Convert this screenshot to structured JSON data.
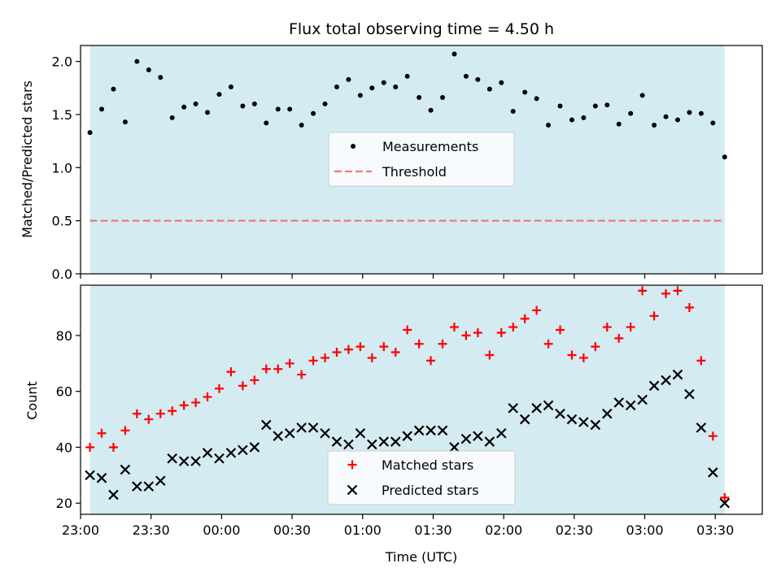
{
  "chart_data": [
    {
      "type": "scatter",
      "title": "Flux total observing time = 4.50 h",
      "xlabel": "",
      "ylabel": "Matched/Predicted stars",
      "ylim": [
        0.0,
        2.15
      ],
      "yticks": [
        "0.0",
        "0.5",
        "1.0",
        "1.5",
        "2.0"
      ],
      "shaded_region": {
        "start": "23:04",
        "end": "03:34",
        "color": "#add8e6"
      },
      "legend": {
        "position": "center",
        "entries": [
          "Measurements",
          "Threshold"
        ]
      },
      "series": [
        {
          "name": "Measurements",
          "marker": "dot",
          "color": "#000000",
          "x": [
            "23:04",
            "23:09",
            "23:14",
            "23:19",
            "23:24",
            "23:29",
            "23:34",
            "23:39",
            "23:44",
            "23:49",
            "23:54",
            "23:59",
            "00:04",
            "00:09",
            "00:14",
            "00:19",
            "00:24",
            "00:29",
            "00:34",
            "00:39",
            "00:44",
            "00:49",
            "00:54",
            "00:59",
            "01:04",
            "01:09",
            "01:14",
            "01:19",
            "01:24",
            "01:29",
            "01:34",
            "01:39",
            "01:44",
            "01:49",
            "01:54",
            "01:59",
            "02:04",
            "02:09",
            "02:14",
            "02:19",
            "02:24",
            "02:29",
            "02:34",
            "02:39",
            "02:44",
            "02:49",
            "02:54",
            "02:59",
            "03:04",
            "03:09",
            "03:14",
            "03:19",
            "03:24",
            "03:29",
            "03:34"
          ],
          "y": [
            1.33,
            1.55,
            1.74,
            1.43,
            2.0,
            1.92,
            1.85,
            1.47,
            1.57,
            1.6,
            1.52,
            1.69,
            1.76,
            1.58,
            1.6,
            1.42,
            1.55,
            1.55,
            1.4,
            1.51,
            1.6,
            1.76,
            1.83,
            1.68,
            1.75,
            1.8,
            1.76,
            1.86,
            1.66,
            1.54,
            1.66,
            2.07,
            1.86,
            1.83,
            1.74,
            1.8,
            1.53,
            1.71,
            1.65,
            1.4,
            1.58,
            1.45,
            1.47,
            1.58,
            1.59,
            1.41,
            1.51,
            1.68,
            1.4,
            1.48,
            1.45,
            1.52,
            1.51,
            1.42,
            1.1
          ]
        },
        {
          "name": "Threshold",
          "marker": "dashed-line",
          "color": "#f07878",
          "x": [
            "23:04",
            "03:34"
          ],
          "y": [
            0.5,
            0.5
          ]
        }
      ]
    },
    {
      "type": "scatter",
      "title": "",
      "xlabel": "Time (UTC)",
      "ylabel": "Count",
      "ylim": [
        16,
        98
      ],
      "yticks": [
        "20",
        "40",
        "60",
        "80"
      ],
      "xticks": [
        "23:00",
        "23:30",
        "00:00",
        "00:30",
        "01:00",
        "01:30",
        "02:00",
        "02:30",
        "03:00",
        "03:30"
      ],
      "shaded_region": {
        "start": "23:04",
        "end": "03:34",
        "color": "#add8e6"
      },
      "legend": {
        "position": "lower center",
        "entries": [
          "Matched stars",
          "Predicted stars"
        ]
      },
      "series": [
        {
          "name": "Matched stars",
          "marker": "plus",
          "color": "#ff0000",
          "x": [
            "23:04",
            "23:09",
            "23:14",
            "23:19",
            "23:24",
            "23:29",
            "23:34",
            "23:39",
            "23:44",
            "23:49",
            "23:54",
            "23:59",
            "00:04",
            "00:09",
            "00:14",
            "00:19",
            "00:24",
            "00:29",
            "00:34",
            "00:39",
            "00:44",
            "00:49",
            "00:54",
            "00:59",
            "01:04",
            "01:09",
            "01:14",
            "01:19",
            "01:24",
            "01:29",
            "01:34",
            "01:39",
            "01:44",
            "01:49",
            "01:54",
            "01:59",
            "02:04",
            "02:09",
            "02:14",
            "02:19",
            "02:24",
            "02:29",
            "02:34",
            "02:39",
            "02:44",
            "02:49",
            "02:54",
            "02:59",
            "03:04",
            "03:09",
            "03:14",
            "03:19",
            "03:24",
            "03:29",
            "03:34"
          ],
          "y": [
            40,
            45,
            40,
            46,
            52,
            50,
            52,
            53,
            55,
            56,
            58,
            61,
            67,
            62,
            64,
            68,
            68,
            70,
            66,
            71,
            72,
            74,
            75,
            76,
            72,
            76,
            74,
            82,
            77,
            71,
            77,
            83,
            80,
            81,
            73,
            81,
            83,
            86,
            89,
            77,
            82,
            73,
            72,
            76,
            83,
            79,
            83,
            96,
            87,
            95,
            96,
            90,
            71,
            44,
            22
          ]
        },
        {
          "name": "Predicted stars",
          "marker": "x",
          "color": "#000000",
          "x": [
            "23:04",
            "23:09",
            "23:14",
            "23:19",
            "23:24",
            "23:29",
            "23:34",
            "23:39",
            "23:44",
            "23:49",
            "23:54",
            "23:59",
            "00:04",
            "00:09",
            "00:14",
            "00:19",
            "00:24",
            "00:29",
            "00:34",
            "00:39",
            "00:44",
            "00:49",
            "00:54",
            "00:59",
            "01:04",
            "01:09",
            "01:14",
            "01:19",
            "01:24",
            "01:29",
            "01:34",
            "01:39",
            "01:44",
            "01:49",
            "01:54",
            "01:59",
            "02:04",
            "02:09",
            "02:14",
            "02:19",
            "02:24",
            "02:29",
            "02:34",
            "02:39",
            "02:44",
            "02:49",
            "02:54",
            "02:59",
            "03:04",
            "03:09",
            "03:14",
            "03:19",
            "03:24",
            "03:29",
            "03:34"
          ],
          "y": [
            30,
            29,
            23,
            32,
            26,
            26,
            28,
            36,
            35,
            35,
            38,
            36,
            38,
            39,
            40,
            48,
            44,
            45,
            47,
            47,
            45,
            42,
            41,
            45,
            41,
            42,
            42,
            44,
            46,
            46,
            46,
            40,
            43,
            44,
            42,
            45,
            54,
            50,
            54,
            55,
            52,
            50,
            49,
            48,
            52,
            56,
            55,
            57,
            62,
            64,
            66,
            59,
            47,
            31,
            20
          ]
        }
      ]
    }
  ]
}
